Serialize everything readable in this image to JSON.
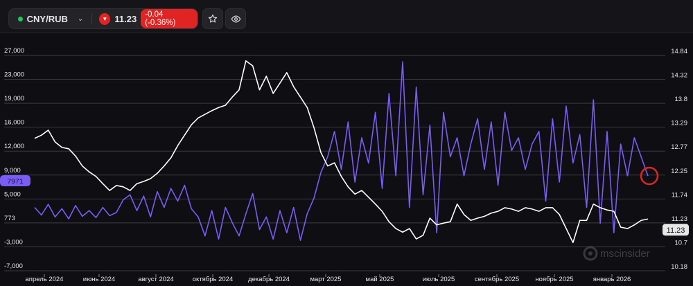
{
  "header": {
    "symbol": "CNY/RUB",
    "status_color": "#22c55e",
    "price": "11.23",
    "change": "-0.04 (-0.36%)",
    "trend_icon": "triangle-down-icon",
    "down_color": "#e02424",
    "buttons": [
      "star-icon",
      "eye-icon"
    ]
  },
  "watermark": "mscinsider",
  "chart_data": {
    "type": "line",
    "left_axis": {
      "ticks": [
        "27,000",
        "23,000",
        "19,000",
        "16,000",
        "12,000",
        "9,000",
        "5,000",
        "773",
        "-3,000",
        "-7,000"
      ],
      "range": [
        -7000,
        27000
      ]
    },
    "right_axis": {
      "ticks": [
        "14.84",
        "14.32",
        "13.8",
        "13.29",
        "12.77",
        "12.25",
        "11.74",
        "11.23",
        "10.7",
        "10.18"
      ],
      "range": [
        10.18,
        14.84
      ]
    },
    "x_ticks": [
      "апрель 2024",
      "июнь 2024",
      "август 2024",
      "октябрь 2024",
      "декабрь 2024",
      "март 2025",
      "май 2025",
      "июль 2025",
      "сентябрь 2025",
      "ноябрь 2025",
      "январь 2026"
    ],
    "x_range": [
      "2024-03",
      "2026-02"
    ],
    "grid": true,
    "series": [
      {
        "axis": "right",
        "color": "#ffffff",
        "last_label": "11.23",
        "values": [
          13.01,
          13.08,
          13.19,
          12.93,
          12.81,
          12.78,
          12.62,
          12.4,
          12.27,
          12.17,
          12.01,
          11.86,
          11.97,
          11.94,
          11.86,
          12.01,
          12.06,
          12.12,
          12.24,
          12.4,
          12.58,
          12.85,
          13.08,
          13.31,
          13.46,
          13.54,
          13.62,
          13.69,
          13.74,
          13.92,
          14.08,
          14.72,
          14.61,
          14.08,
          14.38,
          14.0,
          14.23,
          14.46,
          14.15,
          13.92,
          13.69,
          13.24,
          12.7,
          12.4,
          12.47,
          12.17,
          11.94,
          11.78,
          11.86,
          11.71,
          11.56,
          11.4,
          11.17,
          11.02,
          10.94,
          11.02,
          10.79,
          10.87,
          11.25,
          11.1,
          11.14,
          11.17,
          11.56,
          11.33,
          11.2,
          11.25,
          11.29,
          11.36,
          11.4,
          11.48,
          11.45,
          11.4,
          11.48,
          11.45,
          11.4,
          11.48,
          11.48,
          11.33,
          11.02,
          10.71,
          11.2,
          11.2,
          11.56,
          11.48,
          11.43,
          11.4,
          11.05,
          11.02,
          11.1,
          11.2,
          11.23
        ]
      },
      {
        "axis": "left",
        "color": "#7b5cf5",
        "last_label": "7971",
        "values": [
          3000,
          1800,
          3500,
          1500,
          2800,
          1200,
          3300,
          1600,
          2500,
          1400,
          3000,
          1700,
          2200,
          4200,
          5000,
          2500,
          4800,
          1500,
          5500,
          3000,
          6000,
          4000,
          6500,
          2800,
          1500,
          -1500,
          2500,
          -2000,
          3000,
          600,
          -1500,
          2000,
          5200,
          -500,
          1500,
          -2000,
          2500,
          -1000,
          3000,
          -2200,
          2000,
          4500,
          8500,
          11000,
          15000,
          9000,
          16500,
          7000,
          14000,
          10000,
          18000,
          6000,
          21000,
          8000,
          26000,
          3000,
          22000,
          5000,
          16000,
          -1000,
          18000,
          11000,
          14000,
          8000,
          13000,
          17000,
          9000,
          16500,
          6500,
          18000,
          12000,
          14000,
          9000,
          13000,
          15000,
          4000,
          17000,
          7000,
          19000,
          10000,
          14500,
          3000,
          20000,
          500,
          15000,
          -1000,
          13000,
          8000,
          14000,
          11000,
          7971
        ]
      }
    ],
    "marker": {
      "color": "#e02424"
    }
  }
}
